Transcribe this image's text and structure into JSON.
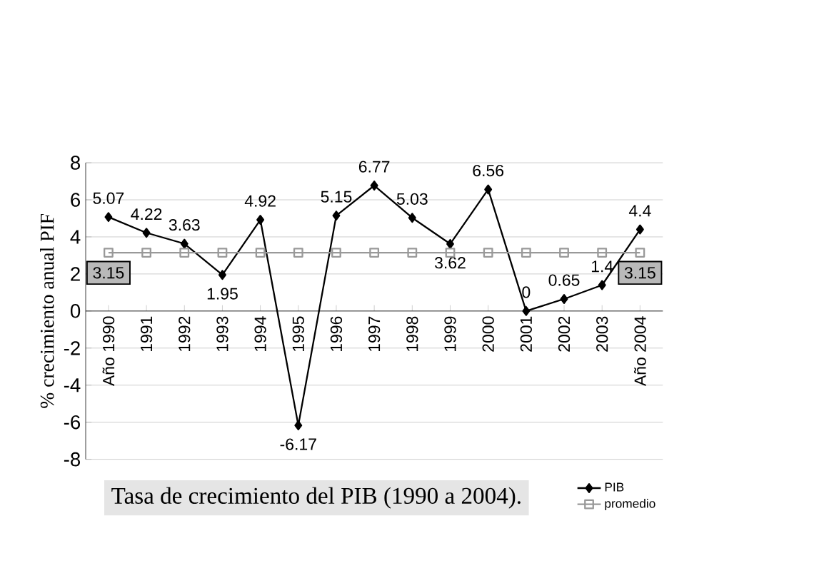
{
  "chart_data": {
    "type": "line",
    "title": "Tasa de crecimiento del PIB (1990 a 2004).",
    "ylabel": "% crecimiento anual PIF",
    "categories": [
      "Año 1990",
      "1991",
      "1992",
      "1993",
      "1994",
      "1995",
      "1996",
      "1997",
      "1998",
      "1999",
      "2000",
      "2001",
      "2002",
      "2003",
      "Año 2004"
    ],
    "series": [
      {
        "name": "PIB",
        "color": "#000000",
        "marker": "diamond",
        "values": [
          5.07,
          4.22,
          3.63,
          1.95,
          4.92,
          -6.17,
          5.15,
          6.77,
          5.03,
          3.62,
          6.56,
          0,
          0.65,
          1.4,
          4.4
        ]
      },
      {
        "name": "promedio",
        "color": "#999999",
        "marker": "square",
        "values": [
          3.15,
          3.15,
          3.15,
          3.15,
          3.15,
          3.15,
          3.15,
          3.15,
          3.15,
          3.15,
          3.15,
          3.15,
          3.15,
          3.15,
          3.15
        ],
        "value_labels": [
          "3.15",
          null,
          null,
          null,
          null,
          null,
          null,
          null,
          null,
          null,
          null,
          null,
          null,
          null,
          "3.15"
        ]
      }
    ],
    "data_labels": true,
    "ylim": [
      -8,
      8
    ],
    "yticks": [
      -8,
      -6,
      -4,
      -2,
      0,
      2,
      4,
      6,
      8
    ],
    "grid": "y",
    "legend": "bottom right",
    "line_style": "solid"
  }
}
